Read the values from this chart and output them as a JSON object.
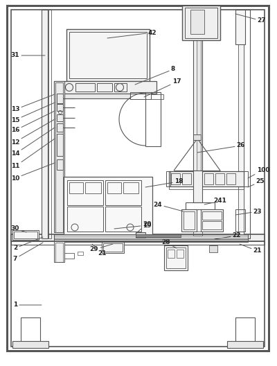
{
  "bg_color": "#ffffff",
  "lc": "#555555",
  "lw": 0.8,
  "fig_width": 4.0,
  "fig_height": 5.28
}
